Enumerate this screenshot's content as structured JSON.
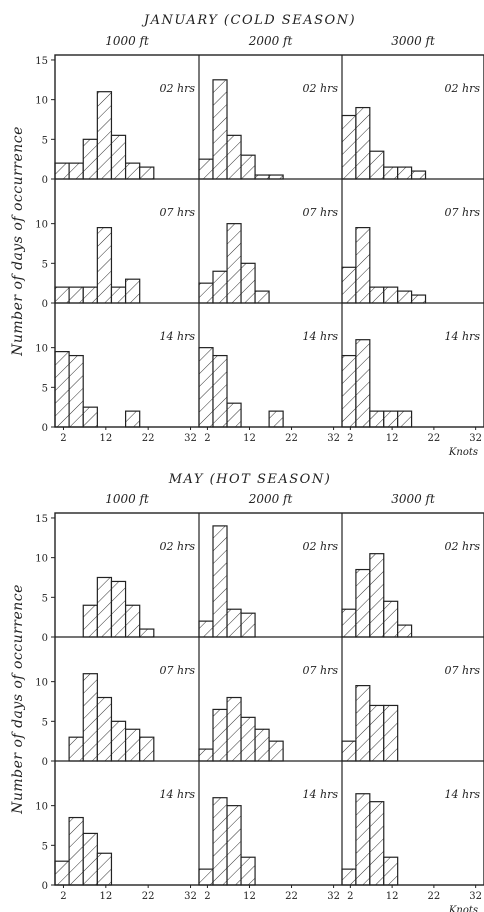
{
  "chart_data": [
    {
      "type": "bar",
      "title": "JANUARY (COLD SEASON)",
      "ylabel": "Number of days of occurrence",
      "xlabel": "Knots",
      "x_ticks": [
        "2",
        "12",
        "22",
        "32"
      ],
      "y_ticks": [
        "0",
        "5",
        "10",
        "15"
      ],
      "xlim": [
        0,
        34
      ],
      "ylim": [
        0,
        15
      ],
      "bin_width": 3.33,
      "columns": [
        "1000 ft",
        "2000 ft",
        "3000 ft"
      ],
      "rows": [
        "02 hrs",
        "07 hrs",
        "14 hrs"
      ],
      "panels": [
        {
          "height": "1000 ft",
          "time": "02 hrs",
          "bin_starts": [
            0,
            3.33,
            6.67,
            10,
            13.33,
            16.67,
            20,
            23.33
          ],
          "values": [
            2,
            2,
            5,
            11,
            5.5,
            2,
            1.5,
            0
          ]
        },
        {
          "height": "2000 ft",
          "time": "02 hrs",
          "bin_starts": [
            0,
            3.33,
            6.67,
            10,
            13.33,
            16.67,
            20,
            23.33
          ],
          "values": [
            2.5,
            12.5,
            5.5,
            3,
            0.5,
            0.5,
            0,
            0
          ]
        },
        {
          "height": "3000 ft",
          "time": "02 hrs",
          "bin_starts": [
            0,
            3.33,
            6.67,
            10,
            13.33,
            16.67,
            20,
            23.33
          ],
          "values": [
            8,
            9,
            3.5,
            1.5,
            1.5,
            1,
            0,
            0
          ]
        },
        {
          "height": "1000 ft",
          "time": "07 hrs",
          "bin_starts": [
            0,
            3.33,
            6.67,
            10,
            13.33,
            16.67,
            20,
            23.33
          ],
          "values": [
            2,
            2,
            2,
            9.5,
            2,
            3,
            0,
            0
          ]
        },
        {
          "height": "2000 ft",
          "time": "07 hrs",
          "bin_starts": [
            0,
            3.33,
            6.67,
            10,
            13.33,
            16.67,
            20,
            23.33
          ],
          "values": [
            2.5,
            4,
            10,
            5,
            1.5,
            0,
            0,
            0
          ]
        },
        {
          "height": "3000 ft",
          "time": "07 hrs",
          "bin_starts": [
            0,
            3.33,
            6.67,
            10,
            13.33,
            16.67,
            20,
            23.33
          ],
          "values": [
            4.5,
            9.5,
            2,
            2,
            1.5,
            1,
            0,
            0
          ]
        },
        {
          "height": "1000 ft",
          "time": "14 hrs",
          "bin_starts": [
            0,
            3.33,
            6.67,
            10,
            13.33,
            16.67,
            20,
            23.33
          ],
          "values": [
            9.5,
            9,
            2.5,
            0,
            0,
            2,
            0,
            0
          ]
        },
        {
          "height": "2000 ft",
          "time": "14 hrs",
          "bin_starts": [
            0,
            3.33,
            6.67,
            10,
            13.33,
            16.67,
            20,
            23.33
          ],
          "values": [
            10,
            9,
            3,
            0,
            0,
            2,
            0,
            0
          ]
        },
        {
          "height": "3000 ft",
          "time": "14 hrs",
          "bin_starts": [
            0,
            3.33,
            6.67,
            10,
            13.33,
            16.67,
            20,
            23.33
          ],
          "values": [
            9,
            11,
            2,
            2,
            2,
            0,
            0,
            0
          ]
        }
      ]
    },
    {
      "type": "bar",
      "title": "MAY (HOT SEASON)",
      "ylabel": "Number of days of occurrence",
      "xlabel": "Knots",
      "x_ticks": [
        "2",
        "12",
        "22",
        "32"
      ],
      "y_ticks": [
        "0",
        "5",
        "10",
        "15"
      ],
      "xlim": [
        0,
        34
      ],
      "ylim": [
        0,
        15
      ],
      "bin_width": 3.33,
      "columns": [
        "1000 ft",
        "2000 ft",
        "3000 ft"
      ],
      "rows": [
        "02 hrs",
        "07 hrs",
        "14 hrs"
      ],
      "panels": [
        {
          "height": "1000 ft",
          "time": "02 hrs",
          "bin_starts": [
            6.67,
            10,
            13.33,
            16.67,
            20,
            23.33,
            26.67,
            30
          ],
          "values": [
            4,
            7.5,
            7,
            4,
            1,
            0,
            0,
            0
          ]
        },
        {
          "height": "2000 ft",
          "time": "02 hrs",
          "bin_starts": [
            0,
            3.33,
            6.67,
            10,
            13.33,
            16.67,
            20,
            23.33
          ],
          "values": [
            2,
            14,
            3.5,
            3,
            0,
            0,
            0,
            0
          ]
        },
        {
          "height": "3000 ft",
          "time": "02 hrs",
          "bin_starts": [
            0,
            3.33,
            6.67,
            10,
            13.33,
            16.67,
            20,
            23.33
          ],
          "values": [
            3.5,
            8.5,
            10.5,
            4.5,
            1.5,
            0,
            0,
            0
          ]
        },
        {
          "height": "1000 ft",
          "time": "07 hrs",
          "bin_starts": [
            3.33,
            6.67,
            10,
            13.33,
            16.67,
            20,
            23.33,
            26.67
          ],
          "values": [
            3,
            11,
            8,
            5,
            4,
            3,
            0,
            0
          ]
        },
        {
          "height": "2000 ft",
          "time": "07 hrs",
          "bin_starts": [
            0,
            3.33,
            6.67,
            10,
            13.33,
            16.67,
            20,
            23.33
          ],
          "values": [
            1.5,
            6.5,
            8,
            5.5,
            4,
            2.5,
            0,
            0
          ]
        },
        {
          "height": "3000 ft",
          "time": "07 hrs",
          "bin_starts": [
            0,
            3.33,
            6.67,
            10,
            13.33,
            16.67,
            20,
            23.33
          ],
          "values": [
            2.5,
            9.5,
            7,
            7,
            0,
            0,
            0,
            0
          ]
        },
        {
          "height": "1000 ft",
          "time": "14 hrs",
          "bin_starts": [
            0,
            3.33,
            6.67,
            10,
            13.33,
            16.67,
            20,
            23.33
          ],
          "values": [
            3,
            8.5,
            6.5,
            4,
            0,
            0,
            0,
            0
          ]
        },
        {
          "height": "2000 ft",
          "time": "14 hrs",
          "bin_starts": [
            0,
            3.33,
            6.67,
            10,
            13.33,
            16.67,
            20,
            23.33
          ],
          "values": [
            2,
            11,
            10,
            3.5,
            0,
            0,
            0,
            0
          ]
        },
        {
          "height": "3000 ft",
          "time": "14 hrs",
          "bin_starts": [
            0,
            3.33,
            6.67,
            10,
            13.33,
            16.67,
            20,
            23.33
          ],
          "values": [
            2,
            11.5,
            10.5,
            3.5,
            0,
            0,
            0,
            0
          ]
        }
      ]
    }
  ]
}
